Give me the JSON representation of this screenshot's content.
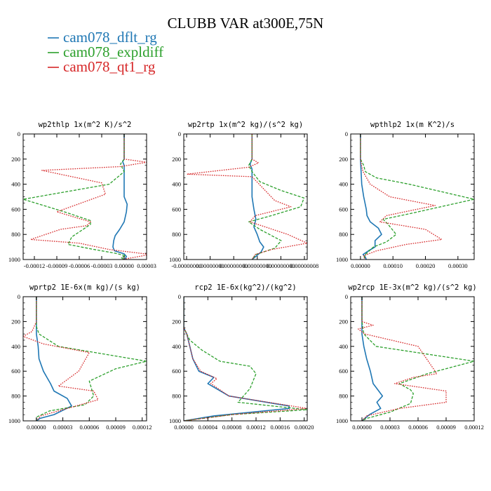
{
  "chart_data": {
    "type": "line",
    "title": "CLUBB VAR at300E,75N",
    "legend": [
      {
        "name": "cam078_dflt_rg",
        "color": "#1f77b4",
        "dash": "solid"
      },
      {
        "name": "cam078_expldiff",
        "color": "#2ca02c",
        "dash": "dashed"
      },
      {
        "name": "cam078_qt1_rg",
        "color": "#d62728",
        "dash": "dotted"
      }
    ],
    "panels": [
      {
        "title": "wp2thlp   1x(m^2 K)/s^2",
        "ylim": [
          1000,
          0
        ],
        "yticks": [
          0,
          200,
          400,
          600,
          800,
          1000
        ],
        "xlim": [
          -0.000135,
          3e-05
        ],
        "xtick_labels": [
          "-0.00012",
          "-0.00009",
          "-0.00006",
          "-0.00003",
          "0.00000",
          "0.00003"
        ],
        "series": [
          {
            "name": "cam078_dflt_rg",
            "x": [
              0.0,
              0.0,
              -2e-06,
              0.0,
              0.0,
              0.0,
              4e-06,
              3e-06,
              0.0,
              -6e-06,
              -1.2e-05,
              -1.4e-05,
              -1.5e-05,
              -1.3e-05,
              0.0,
              3e-06,
              1e-06
            ],
            "y": [
              0,
              200,
              220,
              250,
              400,
              500,
              560,
              620,
              700,
              760,
              810,
              850,
              900,
              930,
              955,
              975,
              1000
            ]
          },
          {
            "name": "cam078_expldiff",
            "x": [
              0.0,
              0.0,
              -5e-06,
              0.0,
              -2e-05,
              -0.000135,
              -8e-05,
              -4.5e-05,
              -4.5e-05,
              -7e-05,
              -7.5e-05,
              -4e-05,
              -1.2e-05,
              2e-06,
              -4e-06,
              0.0
            ],
            "y": [
              0,
              200,
              240,
              300,
              400,
              520,
              620,
              690,
              720,
              820,
              880,
              920,
              950,
              970,
              985,
              1000
            ]
          },
          {
            "name": "cam078_qt1_rg",
            "x": [
              0.0,
              0.0,
              3e-05,
              -5e-06,
              -0.00011,
              -3e-05,
              -2.5e-05,
              -9e-05,
              -4.5e-05,
              -5e-05,
              -8.5e-05,
              -0.000125,
              -6e-05,
              -2e-05,
              3.5e-05,
              -3e-06
            ],
            "y": [
              0,
              200,
              225,
              260,
              290,
              390,
              480,
              620,
              700,
              730,
              760,
              840,
              870,
              920,
              960,
              1000
            ]
          }
        ]
      },
      {
        "title": "wp2rtp   1x(m^2 kg)/(s^2 kg)",
        "ylim": [
          1000,
          0
        ],
        "yticks": [
          0,
          200,
          400,
          600,
          800,
          1000
        ],
        "xlim": [
          -0.000105,
          8.5e-05
        ],
        "xtick_labels": [
          "-0.00000000",
          "0.00000000",
          "0.00000000",
          "0.00000000",
          "0.00000000",
          "0.00000008"
        ],
        "series": [
          {
            "name": "cam078_dflt_rg",
            "x": [
              0.0,
              0.0,
              -3e-06,
              0.0,
              0.0,
              0.0,
              3e-06,
              6e-06,
              3e-06,
              8e-06,
              1.2e-05,
              1.8e-05,
              1.4e-05,
              0.0
            ],
            "y": [
              0,
              200,
              240,
              280,
              400,
              500,
              600,
              680,
              740,
              800,
              860,
              900,
              940,
              1000
            ]
          },
          {
            "name": "cam078_expldiff",
            "x": [
              0.0,
              0.0,
              -5e-06,
              0.0,
              1.2e-05,
              4.5e-05,
              8e-05,
              7.5e-05,
              3e-05,
              -5e-06,
              1.2e-05,
              4.5e-05,
              3.5e-05,
              6e-06,
              0.0
            ],
            "y": [
              0,
              200,
              250,
              300,
              380,
              450,
              510,
              580,
              650,
              700,
              760,
              850,
              910,
              960,
              1000
            ]
          },
          {
            "name": "cam078_qt1_rg",
            "x": [
              0.0,
              0.0,
              1e-05,
              -5e-06,
              -0.0001,
              0.0,
              3.5e-05,
              6e-05,
              5e-06,
              -3e-06,
              5.5e-05,
              8.5e-05,
              3e-05,
              5e-06,
              0.0
            ],
            "y": [
              0,
              200,
              230,
              265,
              320,
              340,
              530,
              580,
              650,
              700,
              800,
              870,
              920,
              960,
              1000
            ]
          }
        ]
      },
      {
        "title": "wpthlp2   1x(m K^2)/s",
        "ylim": [
          1000,
          0
        ],
        "yticks": [
          0,
          200,
          400,
          600,
          800,
          1000
        ],
        "xlim": [
          -3e-05,
          0.00035
        ],
        "xtick_labels": [
          "0.00000",
          "0.00010",
          "0.00020",
          "0.00030"
        ],
        "series": [
          {
            "name": "cam078_dflt_rg",
            "x": [
              0.0,
              0.0,
              2e-06,
              4e-06,
              1e-05,
              1.8e-05,
              2e-05,
              3e-05,
              5.5e-05,
              6.5e-05,
              4.5e-05,
              4.5e-05,
              2.5e-05,
              8e-06,
              1.5e-05,
              1.8e-05
            ],
            "y": [
              0,
              200,
              300,
              400,
              500,
              600,
              650,
              700,
              750,
              800,
              850,
              900,
              930,
              960,
              980,
              1000
            ]
          },
          {
            "name": "cam078_expldiff",
            "x": [
              0.0,
              0.0,
              1e-05,
              1.5e-05,
              5e-05,
              0.00015,
              0.00035,
              0.00016,
              7e-05,
              8.5e-05,
              0.00011,
              8e-05,
              4e-05,
              1.5e-05,
              1e-05
            ],
            "y": [
              0,
              200,
              250,
              300,
              350,
              400,
              520,
              630,
              680,
              720,
              800,
              860,
              900,
              960,
              1000
            ]
          },
          {
            "name": "cam078_qt1_rg",
            "x": [
              0.0,
              0.0,
              3e-06,
              8e-06,
              3e-05,
              9e-05,
              0.00023,
              8e-05,
              6e-05,
              0.0002,
              0.00025,
              0.00014,
              5e-05,
              1e-05,
              1.5e-05
            ],
            "y": [
              0,
              200,
              250,
              300,
              400,
              500,
              570,
              650,
              700,
              760,
              840,
              880,
              930,
              970,
              1000
            ]
          }
        ]
      },
      {
        "title": "wprtp2   1E-6x(m kg)/(s kg)",
        "ylim": [
          1000,
          0
        ],
        "yticks": [
          0,
          200,
          400,
          600,
          800,
          1000
        ],
        "xlim": [
          -1.5e-05,
          0.000125
        ],
        "xtick_labels": [
          "0.00000",
          "0.00003",
          "0.00006",
          "0.00009",
          "0.00012"
        ],
        "series": [
          {
            "name": "cam078_dflt_rg",
            "x": [
              0.0,
              0.0,
              0.0,
              0.0,
              2e-06,
              3e-06,
              8e-06,
              1.2e-05,
              1.6e-05,
              2e-05,
              3.5e-05,
              4e-05,
              2e-05,
              4e-06,
              0.0
            ],
            "y": [
              0,
              200,
              240,
              300,
              400,
              500,
              600,
              650,
              700,
              760,
              820,
              880,
              950,
              980,
              1000
            ]
          },
          {
            "name": "cam078_expldiff",
            "x": [
              0.0,
              0.0,
              0.0,
              3e-06,
              2.5e-05,
              0.000125,
              9e-05,
              6e-05,
              6.5e-05,
              5.5e-05,
              1.5e-05,
              0.0,
              0.0
            ],
            "y": [
              0,
              200,
              240,
              300,
              400,
              520,
              580,
              680,
              800,
              870,
              920,
              970,
              1000
            ]
          },
          {
            "name": "cam078_qt1_rg",
            "x": [
              0.0,
              0.0,
              -5e-06,
              -1.5e-05,
              8e-06,
              6e-05,
              4.8e-05,
              2.5e-05,
              6.5e-05,
              7e-05,
              3.5e-05,
              5e-06,
              0.0
            ],
            "y": [
              0,
              200,
              280,
              320,
              380,
              450,
              600,
              720,
              760,
              830,
              900,
              960,
              1000
            ]
          }
        ]
      },
      {
        "title": "rcp2   1E-6x(kg^2)/(kg^2)",
        "ylim": [
          1000,
          0
        ],
        "yticks": [
          0,
          200,
          400,
          600,
          800,
          1000
        ],
        "xlim": [
          0.0,
          0.000205
        ],
        "xtick_labels": [
          "0.00000",
          "0.00004",
          "0.00008",
          "0.00012",
          "0.00016",
          "0.00020"
        ],
        "series": [
          {
            "name": "cam078_dflt_rg",
            "x": [
              0.0,
              0.0,
              5e-06,
              1.5e-05,
              2.5e-05,
              5e-05,
              4e-05,
              7.5e-05,
              0.000175,
              0.000175,
              5e-05,
              0.0
            ],
            "y": [
              0,
              250,
              300,
              500,
              600,
              650,
              700,
              800,
              880,
              900,
              960,
              1000
            ]
          },
          {
            "name": "cam078_expldiff",
            "x": [
              0.0,
              0.0,
              1e-05,
              3e-05,
              6e-05,
              0.00011,
              0.00012,
              0.00011,
              9e-05,
              0.000205,
              8e-05,
              0.0
            ],
            "y": [
              0,
              250,
              350,
              430,
              520,
              560,
              620,
              740,
              850,
              910,
              950,
              1000
            ]
          },
          {
            "name": "cam078_qt1_rg",
            "x": [
              0.0,
              0.0,
              5e-06,
              1.5e-05,
              2.8e-05,
              5.5e-05,
              4.5e-05,
              7.5e-05,
              0.000205,
              8e-05,
              0.0
            ],
            "y": [
              0,
              250,
              300,
              500,
              600,
              660,
              700,
              800,
              900,
              950,
              1000
            ]
          }
        ]
      },
      {
        "title": "wp2rcp   1E-3x(m^2 kg)/(s^2 kg)",
        "ylim": [
          1000,
          0
        ],
        "yticks": [
          0,
          200,
          400,
          600,
          800,
          1000
        ],
        "xlim": [
          -1.2e-05,
          0.00012
        ],
        "xtick_labels": [
          "0.00000",
          "0.00003",
          "0.00006",
          "0.00009",
          "0.00012"
        ],
        "series": [
          {
            "name": "cam078_dflt_rg",
            "x": [
              0.0,
              0.0,
              0.0,
              2e-06,
              5e-06,
              9e-06,
              1.2e-05,
              1.8e-05,
              2.2e-05,
              1.6e-05,
              2e-05,
              8e-06,
              0.0
            ],
            "y": [
              0,
              200,
              300,
              400,
              500,
              600,
              700,
              760,
              800,
              850,
              900,
              950,
              1000
            ]
          },
          {
            "name": "cam078_expldiff",
            "x": [
              0.0,
              0.0,
              2e-06,
              1.5e-05,
              0.00012,
              7e-05,
              4e-05,
              5.2e-05,
              5.5e-05,
              5.2e-05,
              3e-05,
              5e-06,
              0.0
            ],
            "y": [
              0,
              200,
              300,
              400,
              520,
              620,
              700,
              750,
              780,
              860,
              930,
              980,
              1000
            ]
          },
          {
            "name": "cam078_qt1_rg",
            "x": [
              0.0,
              0.0,
              1.2e-05,
              -4e-06,
              3e-06,
              6e-05,
              8e-05,
              5.5e-05,
              3.5e-05,
              9e-05,
              9e-05,
              4e-05,
              5e-06,
              0.0
            ],
            "y": [
              0,
              200,
              230,
              260,
              300,
              400,
              620,
              650,
              700,
              760,
              850,
              900,
              960,
              1000
            ]
          }
        ]
      }
    ]
  }
}
